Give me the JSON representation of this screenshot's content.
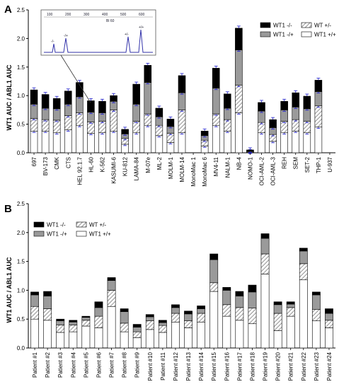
{
  "colors": {
    "neg_neg": "#000000",
    "neg_pos": "#9a9a9a",
    "pos_pos": "#ffffff",
    "hatch": "#777777",
    "error": "#2222cc",
    "inset_trace": "#3333aa"
  },
  "legend": [
    {
      "key": "neg_neg",
      "label": "WT1 -/-",
      "pattern": "solid-black"
    },
    {
      "key": "het",
      "label": "WT +/-",
      "pattern": "hatched"
    },
    {
      "key": "neg_pos",
      "label": "WT1 -/+",
      "pattern": "solid-gray"
    },
    {
      "key": "pos_pos",
      "label": "WT1 +/+",
      "pattern": "white"
    }
  ],
  "inset": {
    "sample": "Bl 60",
    "peak_labels": [
      "-/-",
      "-/+",
      "+/-",
      "+/+"
    ],
    "scale_labels": [
      "100",
      "200",
      "300",
      "400",
      "500",
      "600"
    ]
  },
  "chart_data": [
    {
      "panel": "A",
      "type": "bar",
      "stacked": true,
      "ylabel": "WT1 AUC / ABL1 AUC",
      "ylim": [
        0,
        2.5
      ],
      "yticks": [
        "0.0",
        "0.5",
        "1.0",
        "1.5",
        "2.0",
        "2.5"
      ],
      "categories": [
        "697",
        "BV-173",
        "CMK",
        "CTS",
        "HEL 92.1.7",
        "HL-60",
        "K-562",
        "KASUMI-6",
        "KU-812",
        "LAMA-84",
        "M-07e",
        "ML-2",
        "MOLM-1",
        "MOLM-14",
        "MonoMac 1",
        "MonoMac 6",
        "MV4-11",
        "NALM-1",
        "NB-4",
        "NOMO-1",
        "OCI-AML-2",
        "OCI-AML-3",
        "REH",
        "SEM",
        "SET-2",
        "THP-1",
        "U-937"
      ],
      "series": [
        {
          "name": "WT1 +/+",
          "values": [
            0.38,
            0.38,
            0.35,
            0.4,
            0.48,
            0.34,
            0.35,
            0.38,
            0.15,
            0.35,
            0.48,
            0.3,
            0.18,
            0.35,
            0.0,
            0.12,
            0.48,
            0.38,
            0.7,
            0.01,
            0.35,
            0.2,
            0.35,
            0.38,
            0.35,
            0.45,
            0.0
          ]
        },
        {
          "name": "WT +/-",
          "values": [
            0.22,
            0.2,
            0.22,
            0.25,
            0.22,
            0.2,
            0.2,
            0.37,
            0.1,
            0.2,
            0.2,
            0.18,
            0.16,
            0.4,
            0.0,
            0.1,
            0.2,
            0.2,
            0.48,
            0.01,
            0.18,
            0.12,
            0.2,
            0.2,
            0.2,
            0.37,
            0.0
          ]
        },
        {
          "name": "WT1 -/+",
          "values": [
            0.25,
            0.2,
            0.2,
            0.2,
            0.28,
            0.17,
            0.15,
            0.15,
            0.08,
            0.3,
            0.55,
            0.15,
            0.12,
            0.3,
            0.0,
            0.08,
            0.45,
            0.2,
            0.62,
            0.01,
            0.2,
            0.12,
            0.2,
            0.22,
            0.22,
            0.25,
            0.0
          ]
        },
        {
          "name": "WT1 -/-",
          "values": [
            0.25,
            0.24,
            0.18,
            0.23,
            0.25,
            0.2,
            0.2,
            0.1,
            0.08,
            0.35,
            0.3,
            0.15,
            0.13,
            0.3,
            0.0,
            0.08,
            0.35,
            0.25,
            0.38,
            0.02,
            0.15,
            0.14,
            0.15,
            0.25,
            0.22,
            0.2,
            0.0
          ]
        }
      ]
    },
    {
      "panel": "B",
      "type": "bar",
      "stacked": true,
      "ylabel": "WT1 AUC / ABL1 AUC",
      "ylim": [
        0,
        2.5
      ],
      "yticks": [
        "0.0",
        "0.5",
        "1.0",
        "1.5",
        "2.0",
        "2.5"
      ],
      "categories": [
        "Patient #1",
        "Patient #2",
        "Patient #3",
        "Patient #4",
        "Patient #5",
        "Patient #6",
        "Patient #7",
        "Patient #8",
        "Patient #9",
        "Patient #10",
        "Patient #11",
        "Patient #12",
        "Patient #13",
        "Patient #14",
        "Patient #15",
        "Patient #16",
        "Patient #17",
        "Patient #18",
        "Patient #19",
        "Patient #20",
        "Patient #21",
        "Patient #22",
        "Patient #23",
        "Patient #24"
      ],
      "series": [
        {
          "name": "WT1 +/+",
          "values": [
            0.5,
            0.48,
            0.27,
            0.28,
            0.38,
            0.35,
            0.72,
            0.28,
            0.18,
            0.32,
            0.27,
            0.45,
            0.35,
            0.45,
            0.98,
            0.55,
            0.48,
            0.42,
            1.28,
            0.3,
            0.55,
            1.18,
            0.47,
            0.35
          ]
        },
        {
          "name": "WT +/-",
          "values": [
            0.22,
            0.2,
            0.13,
            0.12,
            0.1,
            0.2,
            0.28,
            0.15,
            0.1,
            0.15,
            0.12,
            0.15,
            0.12,
            0.15,
            0.15,
            0.2,
            0.22,
            0.27,
            0.35,
            0.3,
            0.15,
            0.28,
            0.2,
            0.13
          ]
        },
        {
          "name": "WT1 -/+",
          "values": [
            0.2,
            0.22,
            0.07,
            0.05,
            0.05,
            0.15,
            0.17,
            0.2,
            0.08,
            0.07,
            0.05,
            0.1,
            0.12,
            0.08,
            0.4,
            0.25,
            0.2,
            0.28,
            0.27,
            0.15,
            0.06,
            0.22,
            0.25,
            0.12
          ]
        },
        {
          "name": "WT1 -/-",
          "values": [
            0.05,
            0.08,
            0.03,
            0.03,
            0.02,
            0.1,
            0.05,
            0.05,
            0.05,
            0.04,
            0.04,
            0.05,
            0.05,
            0.05,
            0.1,
            0.05,
            0.08,
            0.12,
            0.08,
            0.05,
            0.04,
            0.05,
            0.05,
            0.08
          ]
        }
      ]
    }
  ]
}
